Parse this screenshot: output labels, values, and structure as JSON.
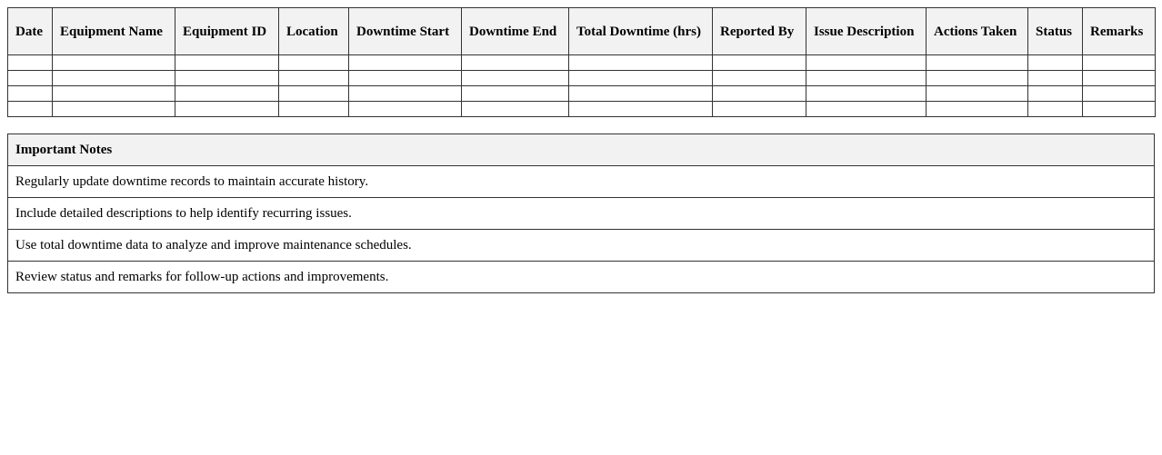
{
  "log_table": {
    "headers": [
      "Date",
      "Equipment Name",
      "Equipment ID",
      "Location",
      "Downtime Start",
      "Downtime End",
      "Total Downtime (hrs)",
      "Reported By",
      "Issue Description",
      "Actions Taken",
      "Status",
      "Remarks"
    ],
    "rows": [
      [
        "",
        "",
        "",
        "",
        "",
        "",
        "",
        "",
        "",
        "",
        "",
        ""
      ],
      [
        "",
        "",
        "",
        "",
        "",
        "",
        "",
        "",
        "",
        "",
        "",
        ""
      ],
      [
        "",
        "",
        "",
        "",
        "",
        "",
        "",
        "",
        "",
        "",
        "",
        ""
      ],
      [
        "",
        "",
        "",
        "",
        "",
        "",
        "",
        "",
        "",
        "",
        "",
        ""
      ]
    ]
  },
  "notes": {
    "title": "Important Notes",
    "items": [
      "Regularly update downtime records to maintain accurate history.",
      "Include detailed descriptions to help identify recurring issues.",
      "Use total downtime data to analyze and improve maintenance schedules.",
      "Review status and remarks for follow-up actions and improvements."
    ]
  }
}
